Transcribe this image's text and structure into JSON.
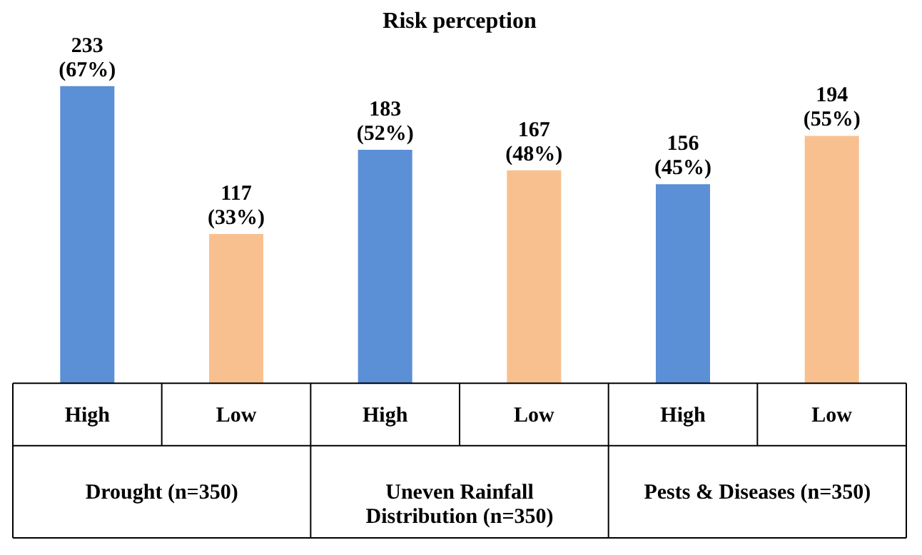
{
  "chart_data": {
    "type": "bar",
    "title": "Risk perception",
    "categories": [
      "High",
      "Low",
      "High",
      "Low",
      "High",
      "Low"
    ],
    "values": [
      233,
      117,
      183,
      167,
      156,
      194
    ],
    "colors": [
      "#5b8fd6",
      "#f9c08f",
      "#5b8fd6",
      "#f9c08f",
      "#5b8fd6",
      "#f9c08f"
    ],
    "value_labels": [
      "233 (67%)",
      "117 (33%)",
      "183 (52%)",
      "167 (48%)",
      "156 (45%)",
      "194 (55%)"
    ],
    "annotations": [
      "Drought (n=350)",
      "Uneven Rainfall Distribution (n=350)",
      "Pests & Diseases (n=350)"
    ],
    "grid": false,
    "legend": false
  }
}
